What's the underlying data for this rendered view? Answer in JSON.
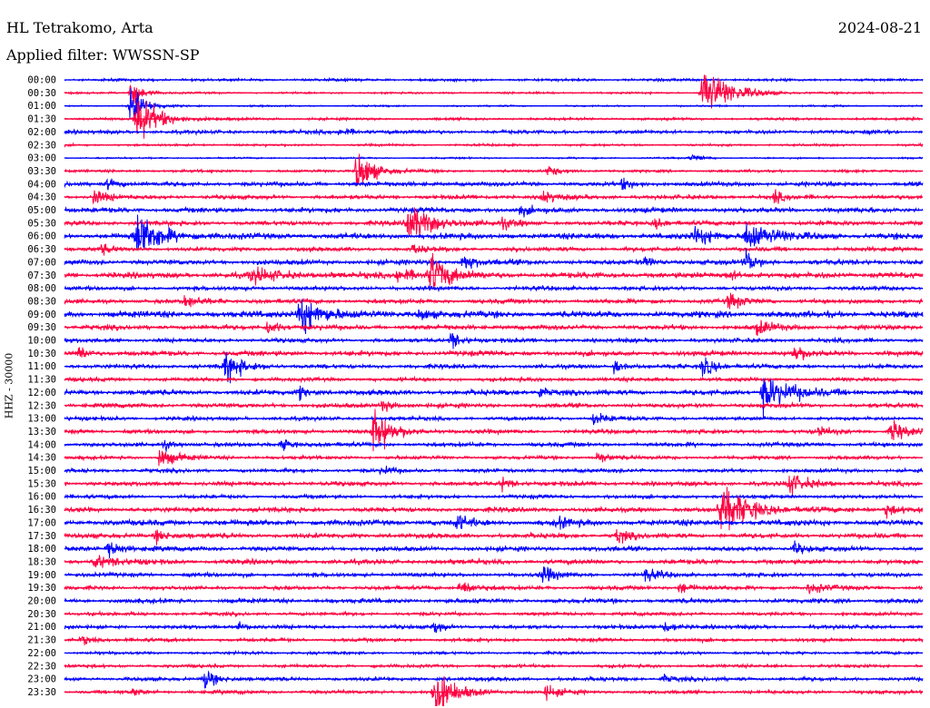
{
  "header": {
    "station": "HL Tetrakomo, Arta",
    "date": "2024-08-21",
    "filter": "Applied filter: WWSSN-SP"
  },
  "chart_data": {
    "type": "line",
    "title": "HL Tetrakomo, Arta",
    "subtitle": "Applied filter: WWSSN-SP",
    "ylabel": "HHZ - 30000",
    "rows": [
      "00:00",
      "00:30",
      "01:00",
      "01:30",
      "02:00",
      "02:30",
      "03:00",
      "03:30",
      "04:00",
      "04:30",
      "05:00",
      "05:30",
      "06:00",
      "06:30",
      "07:00",
      "07:30",
      "08:00",
      "08:30",
      "09:00",
      "09:30",
      "10:00",
      "10:30",
      "11:00",
      "11:30",
      "12:00",
      "12:30",
      "13:00",
      "13:30",
      "14:00",
      "14:30",
      "15:00",
      "15:30",
      "16:00",
      "16:30",
      "17:00",
      "17:30",
      "18:00",
      "18:30",
      "19:00",
      "19:30",
      "20:00",
      "20:30",
      "21:00",
      "21:30",
      "22:00",
      "22:30",
      "23:00",
      "23:30"
    ],
    "row_minutes": 30,
    "colors": [
      "#0000ff",
      "#ff0040"
    ],
    "noise": [
      0.8,
      0.6,
      0.5,
      0.8,
      1.2,
      0.7,
      0.5,
      0.8,
      1.4,
      1.3,
      1.6,
      1.4,
      1.8,
      1.3,
      1.6,
      1.8,
      1.3,
      1.4,
      2.0,
      1.5,
      1.3,
      1.6,
      1.3,
      1.2,
      1.6,
      1.4,
      1.2,
      1.3,
      1.3,
      1.1,
      1.2,
      1.4,
      1.2,
      1.5,
      1.8,
      1.5,
      1.5,
      1.5,
      1.3,
      1.2,
      1.4,
      1.1,
      1.2,
      1.1,
      0.9,
      1.0,
      1.2,
      1.1
    ],
    "events": [
      {
        "row": 1,
        "minute": 22.3,
        "amp": 22,
        "dur": 1.5
      },
      {
        "row": 1,
        "minute": 2.3,
        "amp": 12,
        "dur": 0.6
      },
      {
        "row": 2,
        "minute": 2.3,
        "amp": 16,
        "dur": 0.8
      },
      {
        "row": 3,
        "minute": 2.5,
        "amp": 20,
        "dur": 1.2
      },
      {
        "row": 4,
        "minute": 9.6,
        "amp": 3,
        "dur": 1.0
      },
      {
        "row": 6,
        "minute": 21.9,
        "amp": 3,
        "dur": 0.6
      },
      {
        "row": 7,
        "minute": 10.2,
        "amp": 18,
        "dur": 1.0
      },
      {
        "row": 7,
        "minute": 16.9,
        "amp": 4,
        "dur": 0.8
      },
      {
        "row": 8,
        "minute": 1.5,
        "amp": 4,
        "dur": 0.6
      },
      {
        "row": 8,
        "minute": 19.5,
        "amp": 4,
        "dur": 0.6
      },
      {
        "row": 9,
        "minute": 1.0,
        "amp": 6,
        "dur": 0.8
      },
      {
        "row": 9,
        "minute": 16.7,
        "amp": 6,
        "dur": 0.7
      },
      {
        "row": 9,
        "minute": 24.8,
        "amp": 5,
        "dur": 0.5
      },
      {
        "row": 10,
        "minute": 15.9,
        "amp": 3,
        "dur": 0.8
      },
      {
        "row": 11,
        "minute": 12.0,
        "amp": 14,
        "dur": 1.5
      },
      {
        "row": 11,
        "minute": 15.3,
        "amp": 4,
        "dur": 0.6
      },
      {
        "row": 11,
        "minute": 20.6,
        "amp": 4,
        "dur": 0.8
      },
      {
        "row": 12,
        "minute": 2.5,
        "amp": 20,
        "dur": 1.3
      },
      {
        "row": 12,
        "minute": 23.8,
        "amp": 12,
        "dur": 1.5
      },
      {
        "row": 12,
        "minute": 22.0,
        "amp": 6,
        "dur": 1.2
      },
      {
        "row": 13,
        "minute": 1.3,
        "amp": 4,
        "dur": 0.5
      },
      {
        "row": 13,
        "minute": 12.2,
        "amp": 4,
        "dur": 0.5
      },
      {
        "row": 14,
        "minute": 13.9,
        "amp": 7,
        "dur": 0.7
      },
      {
        "row": 14,
        "minute": 20.3,
        "amp": 4,
        "dur": 0.6
      },
      {
        "row": 14,
        "minute": 23.8,
        "amp": 9,
        "dur": 0.6
      },
      {
        "row": 15,
        "minute": 6.5,
        "amp": 5,
        "dur": 1.8
      },
      {
        "row": 15,
        "minute": 11.6,
        "amp": 5,
        "dur": 1.5
      },
      {
        "row": 15,
        "minute": 12.8,
        "amp": 18,
        "dur": 0.9
      },
      {
        "row": 15,
        "minute": 23.2,
        "amp": 4,
        "dur": 0.6
      },
      {
        "row": 17,
        "minute": 4.2,
        "amp": 4,
        "dur": 1.0
      },
      {
        "row": 17,
        "minute": 23.2,
        "amp": 6,
        "dur": 0.8
      },
      {
        "row": 18,
        "minute": 8.2,
        "amp": 16,
        "dur": 1.2
      },
      {
        "row": 18,
        "minute": 12.4,
        "amp": 5,
        "dur": 0.8
      },
      {
        "row": 19,
        "minute": 7.1,
        "amp": 6,
        "dur": 0.7
      },
      {
        "row": 19,
        "minute": 24.2,
        "amp": 6,
        "dur": 0.8
      },
      {
        "row": 20,
        "minute": 13.5,
        "amp": 7,
        "dur": 0.6
      },
      {
        "row": 21,
        "minute": 0.5,
        "amp": 6,
        "dur": 0.6
      },
      {
        "row": 21,
        "minute": 25.5,
        "amp": 7,
        "dur": 0.6
      },
      {
        "row": 22,
        "minute": 5.6,
        "amp": 12,
        "dur": 1.0
      },
      {
        "row": 22,
        "minute": 19.2,
        "amp": 5,
        "dur": 0.5
      },
      {
        "row": 22,
        "minute": 22.3,
        "amp": 9,
        "dur": 0.7
      },
      {
        "row": 24,
        "minute": 24.4,
        "amp": 14,
        "dur": 1.6
      },
      {
        "row": 24,
        "minute": 16.6,
        "amp": 5,
        "dur": 0.7
      },
      {
        "row": 24,
        "minute": 8.2,
        "amp": 5,
        "dur": 0.5
      },
      {
        "row": 25,
        "minute": 11.1,
        "amp": 5,
        "dur": 0.6
      },
      {
        "row": 26,
        "minute": 18.5,
        "amp": 6,
        "dur": 0.7
      },
      {
        "row": 27,
        "minute": 10.8,
        "amp": 18,
        "dur": 1.0
      },
      {
        "row": 27,
        "minute": 28.9,
        "amp": 10,
        "dur": 0.7
      },
      {
        "row": 27,
        "minute": 26.3,
        "amp": 5,
        "dur": 0.6
      },
      {
        "row": 28,
        "minute": 3.5,
        "amp": 4,
        "dur": 0.5
      },
      {
        "row": 28,
        "minute": 7.6,
        "amp": 5,
        "dur": 0.6
      },
      {
        "row": 29,
        "minute": 3.3,
        "amp": 7,
        "dur": 1.0
      },
      {
        "row": 29,
        "minute": 18.6,
        "amp": 5,
        "dur": 0.6
      },
      {
        "row": 30,
        "minute": 11.1,
        "amp": 4,
        "dur": 0.5
      },
      {
        "row": 31,
        "minute": 25.3,
        "amp": 8,
        "dur": 1.0
      },
      {
        "row": 31,
        "minute": 15.3,
        "amp": 5,
        "dur": 0.6
      },
      {
        "row": 33,
        "minute": 22.9,
        "amp": 20,
        "dur": 1.6
      },
      {
        "row": 33,
        "minute": 28.7,
        "amp": 5,
        "dur": 0.8
      },
      {
        "row": 34,
        "minute": 13.7,
        "amp": 6,
        "dur": 0.7
      },
      {
        "row": 34,
        "minute": 17.2,
        "amp": 4,
        "dur": 0.7
      },
      {
        "row": 35,
        "minute": 3.2,
        "amp": 5,
        "dur": 0.7
      },
      {
        "row": 35,
        "minute": 19.3,
        "amp": 6,
        "dur": 0.6
      },
      {
        "row": 36,
        "minute": 1.5,
        "amp": 7,
        "dur": 0.8
      },
      {
        "row": 36,
        "minute": 25.5,
        "amp": 5,
        "dur": 0.6
      },
      {
        "row": 37,
        "minute": 1.0,
        "amp": 5,
        "dur": 1.2
      },
      {
        "row": 38,
        "minute": 16.7,
        "amp": 6,
        "dur": 0.8
      },
      {
        "row": 38,
        "minute": 20.3,
        "amp": 5,
        "dur": 0.7
      },
      {
        "row": 39,
        "minute": 13.8,
        "amp": 7,
        "dur": 0.7
      },
      {
        "row": 39,
        "minute": 21.5,
        "amp": 5,
        "dur": 0.7
      },
      {
        "row": 39,
        "minute": 26.0,
        "amp": 4,
        "dur": 1.0
      },
      {
        "row": 42,
        "minute": 6.1,
        "amp": 3,
        "dur": 0.6
      },
      {
        "row": 42,
        "minute": 12.9,
        "amp": 5,
        "dur": 0.6
      },
      {
        "row": 42,
        "minute": 20.9,
        "amp": 5,
        "dur": 0.8
      },
      {
        "row": 43,
        "minute": 0.6,
        "amp": 4,
        "dur": 0.6
      },
      {
        "row": 46,
        "minute": 4.9,
        "amp": 9,
        "dur": 0.6
      },
      {
        "row": 46,
        "minute": 20.9,
        "amp": 4,
        "dur": 0.6
      },
      {
        "row": 47,
        "minute": 12.9,
        "amp": 18,
        "dur": 1.2
      },
      {
        "row": 47,
        "minute": 16.8,
        "amp": 5,
        "dur": 0.8
      },
      {
        "row": 47,
        "minute": 2.4,
        "amp": 3,
        "dur": 0.4
      }
    ]
  }
}
